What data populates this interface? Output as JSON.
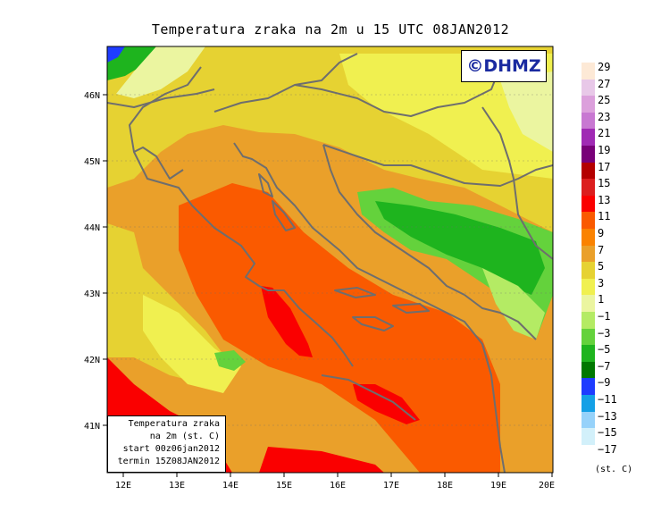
{
  "title": "Temperatura zraka na 2m u 15 UTC 08JAN2012",
  "logo": "©DHMZ",
  "info_box": {
    "line1": "Temperatura zraka",
    "line2": "na 2m (st. C)",
    "line3": "start 00z06jan2012",
    "line4": "termin 15Z08JAN2012"
  },
  "axes": {
    "lon_labels": [
      "12E",
      "13E",
      "14E",
      "15E",
      "16E",
      "17E",
      "18E",
      "19E",
      "20E"
    ],
    "lat_labels": [
      "46N",
      "45N",
      "44N",
      "43N",
      "42N",
      "41N"
    ]
  },
  "legend": {
    "labels": [
      "29",
      "27",
      "25",
      "23",
      "21",
      "19",
      "17",
      "15",
      "13",
      "11",
      "9",
      "7",
      "5",
      "3",
      "1",
      "−1",
      "−3",
      "−5",
      "−7",
      "−9",
      "−11",
      "−13",
      "−15",
      "−17"
    ],
    "colors": [
      "#fde9d6",
      "#e8c8e8",
      "#dca0dc",
      "#c878d2",
      "#a02ab4",
      "#780078",
      "#b40000",
      "#dc1e1e",
      "#fa0000",
      "#fa5a00",
      "#fa8200",
      "#eaa02a",
      "#e6d232",
      "#f0f050",
      "#ebf5a0",
      "#b4eb64",
      "#64d23c",
      "#1eb41e",
      "#007800",
      "#1e3cff",
      "#14a0e6",
      "#96d2fa",
      "#d2f0fa",
      "#ffffff"
    ],
    "units": "(st. C)"
  }
}
